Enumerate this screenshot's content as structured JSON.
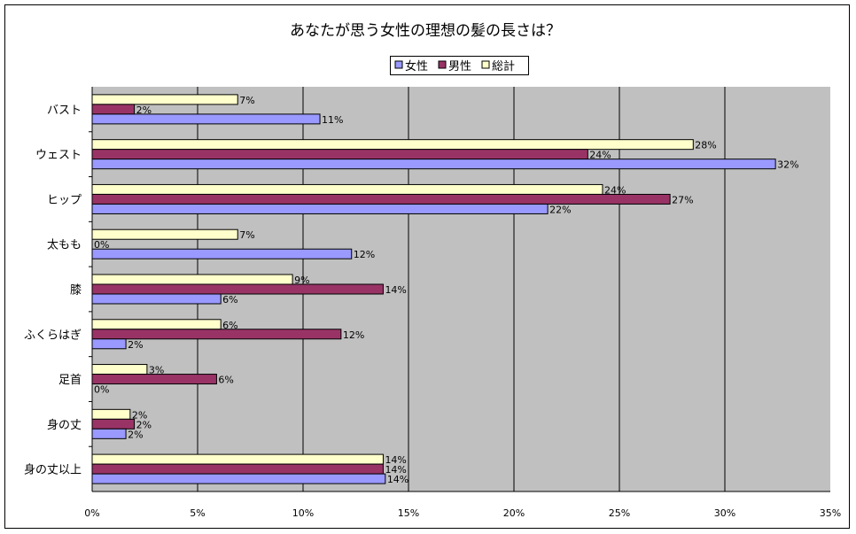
{
  "chart_data": {
    "type": "bar",
    "orientation": "horizontal",
    "title": "あなたが思う女性の理想の髪の長さは？",
    "xlabel": "",
    "ylabel": "",
    "xlim": [
      0,
      35
    ],
    "x_ticks": [
      "0%",
      "5%",
      "10%",
      "15%",
      "20%",
      "25%",
      "30%",
      "35%"
    ],
    "x_tick_values": [
      0,
      5,
      10,
      15,
      20,
      25,
      30,
      35
    ],
    "grid": true,
    "legend_position": "top-center",
    "categories": [
      "バスト",
      "ウェスト",
      "ヒップ",
      "太もも",
      "膝",
      "ふくらはぎ",
      "足首",
      "身の丈",
      "身の丈以上"
    ],
    "series": [
      {
        "name": "総計",
        "color": "#FFFFCC",
        "values": [
          6.9,
          28.5,
          24.2,
          6.9,
          9.5,
          6.1,
          2.6,
          1.8,
          13.8
        ],
        "labels": [
          "7%",
          "28%",
          "24%",
          "7%",
          "9%",
          "6%",
          "3%",
          "2%",
          "14%"
        ]
      },
      {
        "name": "男性",
        "color": "#993366",
        "values": [
          2.0,
          23.5,
          27.4,
          0,
          13.8,
          11.8,
          5.9,
          2.0,
          13.8
        ],
        "labels": [
          "2%",
          "24%",
          "27%",
          "0%",
          "14%",
          "12%",
          "6%",
          "2%",
          "14%"
        ]
      },
      {
        "name": "女性",
        "color": "#9999FF",
        "values": [
          10.8,
          32.4,
          21.6,
          12.3,
          6.1,
          1.6,
          0,
          1.6,
          13.9
        ],
        "labels": [
          "11%",
          "32%",
          "22%",
          "12%",
          "6%",
          "2%",
          "0%",
          "2%",
          "14%"
        ]
      }
    ],
    "legend_order": [
      "女性",
      "男性",
      "総計"
    ],
    "plot_background": "#C0C0C0"
  }
}
